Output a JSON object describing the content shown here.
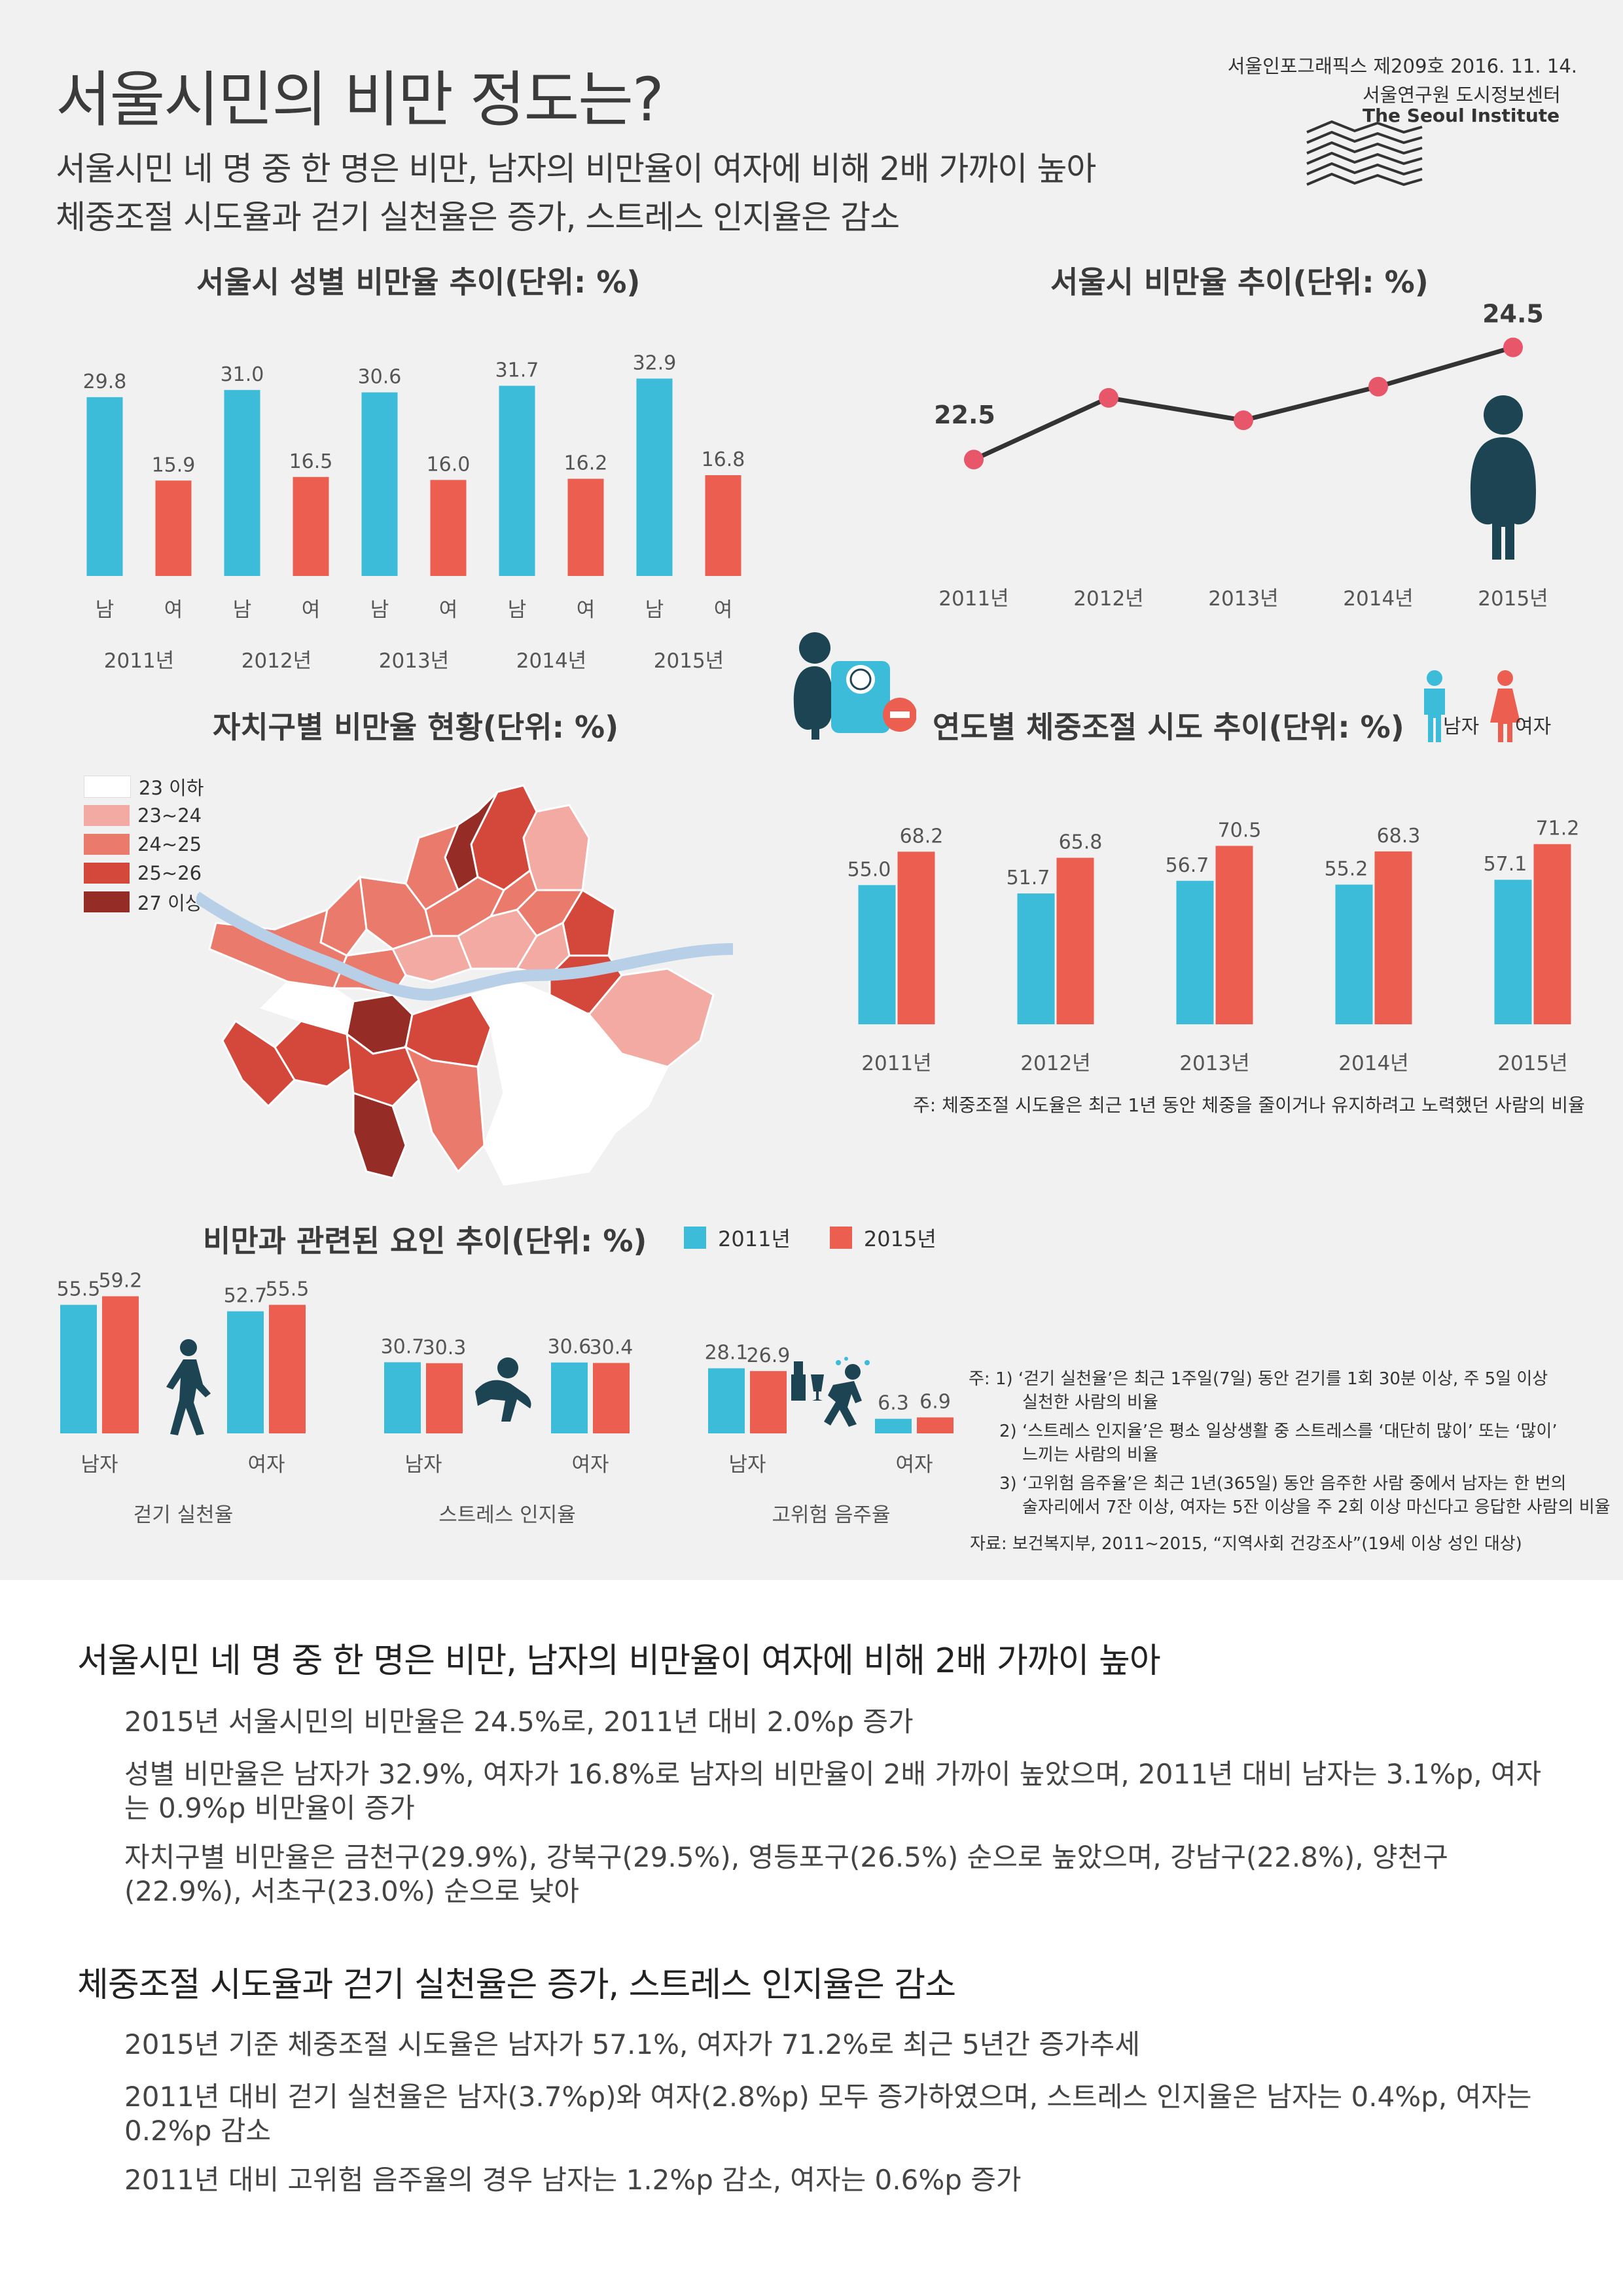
{
  "header": {
    "title": "서울시민의 비만 정도는?",
    "subtitle1": "서울시민 네 명 중 한 명은 비만, 남자의 비만율이 여자에 비해 2배 가까이 높아",
    "subtitle2": "체중조절 시도율과 걷기 실천율은 증가, 스트레스 인지율은 감소",
    "publication": "서울인포그래픽스 제209호 2016. 11. 14.",
    "org_kr": "서울연구원 도시정보센터",
    "org_en": "The Seoul Institute"
  },
  "colors": {
    "male": "#3dbcd9",
    "female": "#eb5e50",
    "line": "#333333",
    "dot": "#e8566a",
    "icon": "#1d4452",
    "bg": "#f1f1f1"
  },
  "chart_data": [
    {
      "id": "gender_obesity",
      "type": "bar",
      "title": "서울시 성별 비만율 추이(단위: %)",
      "categories": [
        "2011년",
        "2012년",
        "2013년",
        "2014년",
        "2015년"
      ],
      "sublabels": [
        "남",
        "여"
      ],
      "series": [
        {
          "name": "남",
          "values": [
            29.8,
            31.0,
            30.6,
            31.7,
            32.9
          ]
        },
        {
          "name": "여",
          "values": [
            15.9,
            16.5,
            16.0,
            16.2,
            16.8
          ]
        }
      ],
      "value_labels": [
        [
          "29.8",
          "31.0",
          "30.6",
          "31.7",
          "32.9"
        ],
        [
          "15.9",
          "16.5",
          "16.0",
          "16.2",
          "16.8"
        ]
      ],
      "ylim": [
        0,
        36
      ]
    },
    {
      "id": "obesity_trend",
      "type": "line",
      "title": "서울시 비만율 추이(단위: %)",
      "x": [
        "2011년",
        "2012년",
        "2013년",
        "2014년",
        "2015년"
      ],
      "y": [
        22.5,
        23.6,
        23.2,
        23.8,
        24.5
      ],
      "labels_shown": [
        "22.5",
        "",
        "",
        "",
        "24.5"
      ],
      "ylim": [
        22.0,
        24.8
      ]
    },
    {
      "id": "district_map",
      "type": "heatmap",
      "title": "자치구별 비만율 현황(단위: %)",
      "legend": [
        {
          "label": "23 이하",
          "color": "#ffffff"
        },
        {
          "label": "23~24",
          "color": "#f2aaa3"
        },
        {
          "label": "24~25",
          "color": "#ea7a6b"
        },
        {
          "label": "25~26",
          "color": "#d4483c"
        },
        {
          "label": "27 이상",
          "color": "#962c26"
        }
      ]
    },
    {
      "id": "weight_control",
      "type": "bar",
      "title": "연도별 체중조절 시도 추이(단위: %)",
      "categories": [
        "2011년",
        "2012년",
        "2013년",
        "2014년",
        "2015년"
      ],
      "legend": [
        "남자",
        "여자"
      ],
      "series": [
        {
          "name": "남자",
          "values": [
            55.0,
            51.7,
            56.7,
            55.2,
            57.1
          ]
        },
        {
          "name": "여자",
          "values": [
            68.2,
            65.8,
            70.5,
            68.3,
            71.2
          ]
        }
      ],
      "value_labels": [
        [
          "55.0",
          "51.7",
          "56.7",
          "55.2",
          "57.1"
        ],
        [
          "68.2",
          "65.8",
          "70.5",
          "68.3",
          "71.2"
        ]
      ],
      "ylim": [
        0,
        75
      ],
      "note": "주: 체중조절 시도율은 최근 1년 동안 체중을 줄이거나 유지하려고 노력했던 사람의 비율"
    },
    {
      "id": "related_factors",
      "type": "bar",
      "title": "비만과 관련된 요인 추이(단위: %)",
      "legend": [
        "2011년",
        "2015년"
      ],
      "groups": [
        {
          "label": "걷기 실천율",
          "categories": [
            "남자",
            "여자"
          ],
          "v2011": [
            55.5,
            52.7
          ],
          "v2015": [
            59.2,
            55.5
          ],
          "l2011": [
            "55.5",
            "52.7"
          ],
          "l2015": [
            "59.2",
            "55.5"
          ]
        },
        {
          "label": "스트레스 인지율",
          "categories": [
            "남자",
            "여자"
          ],
          "v2011": [
            30.7,
            30.6
          ],
          "v2015": [
            30.3,
            30.4
          ],
          "l2011": [
            "30.7",
            "30.6"
          ],
          "l2015": [
            "30.3",
            "30.4"
          ]
        },
        {
          "label": "고위험 음주율",
          "categories": [
            "남자",
            "여자"
          ],
          "v2011": [
            28.1,
            6.3
          ],
          "v2015": [
            26.9,
            6.9
          ],
          "l2011": [
            "28.1",
            "6.3"
          ],
          "l2015": [
            "26.9",
            "6.9"
          ]
        }
      ],
      "ylim": [
        0,
        65
      ]
    }
  ],
  "notes": {
    "n1a": "주: 1) ‘걷기 실천율’은 최근 1주일(7일) 동안 걷기를 1회 30분 이상, 주 5일 이상",
    "n1b": "실천한 사람의 비율",
    "n2a": "2) ‘스트레스 인지율’은 평소 일상생활 중 스트레스를 ‘대단히 많이’ 또는 ‘많이’",
    "n2b": "느끼는 사람의 비율",
    "n3a": "3) ‘고위험 음주율’은 최근 1년(365일) 동안 음주한 사람 중에서 남자는 한 번의",
    "n3b": "술자리에서 7잔 이상, 여자는 5잔 이상을 주 2회 이상 마신다고 응답한 사람의 비율",
    "source": "자료: 보건복지부, 2011~2015, “지역사회 건강조사”(19세 이상 성인 대상)"
  },
  "summary": {
    "h1": "서울시민 네 명 중 한 명은 비만, 남자의 비만율이 여자에 비해 2배 가까이 높아",
    "p1": "2015년 서울시민의 비만율은 24.5%로, 2011년 대비 2.0%p 증가",
    "p2": "성별 비만율은 남자가 32.9%, 여자가 16.8%로 남자의 비만율이 2배 가까이 높았으며, 2011년 대비 남자는 3.1%p, 여자는 0.9%p 비만율이 증가",
    "p3": "자치구별 비만율은 금천구(29.9%), 강북구(29.5%), 영등포구(26.5%) 순으로 높았으며, 강남구(22.8%), 양천구(22.9%), 서초구(23.0%) 순으로 낮아",
    "h2": "체중조절 시도율과 걷기 실천율은 증가, 스트레스 인지율은 감소",
    "p4": "2015년 기준 체중조절 시도율은 남자가 57.1%, 여자가 71.2%로 최근 5년간 증가추세",
    "p5": "2011년 대비 걷기 실천율은 남자(3.7%p)와 여자(2.8%p) 모두 증가하였으며, 스트레스 인지율은 남자는 0.4%p, 여자는 0.2%p 감소",
    "p6": "2011년 대비 고위험 음주율의 경우 남자는 1.2%p 감소, 여자는 0.6%p 증가"
  }
}
